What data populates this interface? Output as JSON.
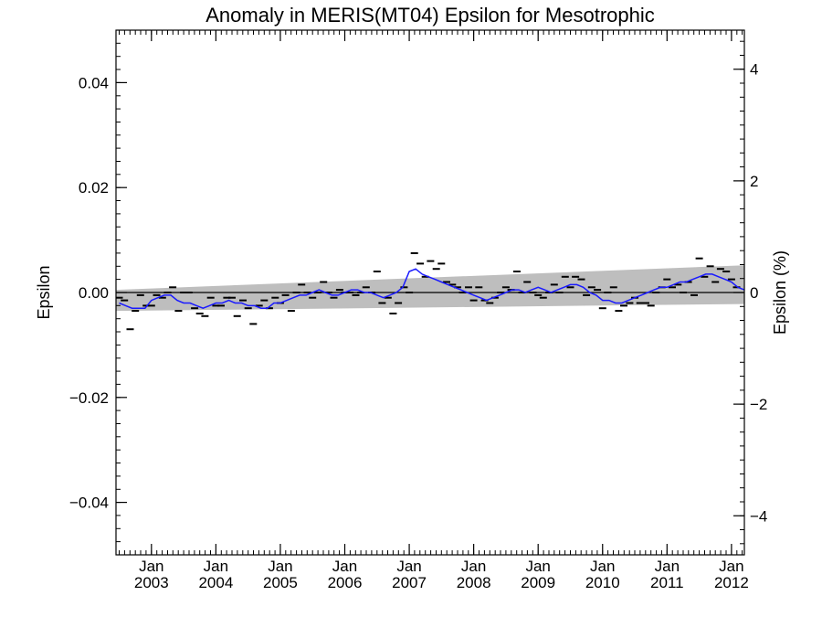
{
  "chart_data": {
    "type": "line",
    "title": "Anomaly in MERIS(MT04) Epsilon for Mesotrophic",
    "xlabel": "",
    "ylabel": "Epsilon",
    "y2label": "Epsilon (%)",
    "xlim": [
      2002.45,
      2012.2
    ],
    "ylim": [
      -0.05,
      0.05
    ],
    "y2lim": [
      -4.7,
      4.7
    ],
    "yticks": [
      {
        "value": -0.04,
        "label": "−0.04"
      },
      {
        "value": -0.02,
        "label": "−0.02"
      },
      {
        "value": 0.0,
        "label": "0.00"
      },
      {
        "value": 0.02,
        "label": "0.02"
      },
      {
        "value": 0.04,
        "label": "0.04"
      }
    ],
    "y2ticks": [
      {
        "value": -4,
        "label": "−4"
      },
      {
        "value": -2,
        "label": "−2"
      },
      {
        "value": 0,
        "label": "0"
      },
      {
        "value": 2,
        "label": "2"
      },
      {
        "value": 4,
        "label": "4"
      }
    ],
    "xticks": [
      {
        "value": 2003.0,
        "month": "Jan",
        "year": "2003"
      },
      {
        "value": 2004.0,
        "month": "Jan",
        "year": "2004"
      },
      {
        "value": 2005.0,
        "month": "Jan",
        "year": "2005"
      },
      {
        "value": 2006.0,
        "month": "Jan",
        "year": "2006"
      },
      {
        "value": 2007.0,
        "month": "Jan",
        "year": "2007"
      },
      {
        "value": 2008.0,
        "month": "Jan",
        "year": "2008"
      },
      {
        "value": 2009.0,
        "month": "Jan",
        "year": "2009"
      },
      {
        "value": 2010.0,
        "month": "Jan",
        "year": "2010"
      },
      {
        "value": 2011.0,
        "month": "Jan",
        "year": "2011"
      },
      {
        "value": 2012.0,
        "month": "Jan",
        "year": "2012"
      }
    ],
    "grid": false,
    "colors": {
      "smoothed_line": "#1a1aff",
      "confidence_band": "#bebebe",
      "points": "#000000",
      "zero_line": "#000000"
    },
    "confidence_band": {
      "x": [
        2002.45,
        2012.2
      ],
      "upper": [
        0.0005,
        0.0052
      ],
      "lower": [
        -0.0035,
        -0.0022
      ]
    },
    "series": [
      {
        "type": "points",
        "x": [
          2002.5,
          2002.58,
          2002.67,
          2002.75,
          2002.83,
          2002.92,
          2003.0,
          2003.08,
          2003.17,
          2003.25,
          2003.33,
          2003.42,
          2003.5,
          2003.58,
          2003.67,
          2003.75,
          2003.83,
          2003.92,
          2004.0,
          2004.08,
          2004.17,
          2004.25,
          2004.33,
          2004.42,
          2004.5,
          2004.58,
          2004.67,
          2004.75,
          2004.83,
          2004.92,
          2005.0,
          2005.08,
          2005.17,
          2005.25,
          2005.33,
          2005.42,
          2005.5,
          2005.58,
          2005.67,
          2005.75,
          2005.83,
          2005.92,
          2006.0,
          2006.08,
          2006.17,
          2006.25,
          2006.33,
          2006.42,
          2006.5,
          2006.58,
          2006.67,
          2006.75,
          2006.83,
          2006.92,
          2007.0,
          2007.08,
          2007.17,
          2007.25,
          2007.33,
          2007.42,
          2007.5,
          2007.58,
          2007.67,
          2007.75,
          2007.83,
          2007.92,
          2008.0,
          2008.08,
          2008.17,
          2008.25,
          2008.33,
          2008.42,
          2008.5,
          2008.58,
          2008.67,
          2008.75,
          2008.83,
          2008.92,
          2009.0,
          2009.08,
          2009.17,
          2009.25,
          2009.33,
          2009.42,
          2009.5,
          2009.58,
          2009.67,
          2009.75,
          2009.83,
          2009.92,
          2010.0,
          2010.08,
          2010.17,
          2010.25,
          2010.33,
          2010.42,
          2010.5,
          2010.58,
          2010.67,
          2010.75,
          2010.83,
          2010.92,
          2011.0,
          2011.08,
          2011.17,
          2011.25,
          2011.33,
          2011.42,
          2011.5,
          2011.58,
          2011.67,
          2011.75,
          2011.83,
          2011.92,
          2012.0,
          2012.08
        ],
        "y": [
          -0.001,
          -0.0015,
          -0.007,
          -0.0035,
          -0.0005,
          -0.0025,
          -0.0025,
          -0.0005,
          -0.001,
          0.0,
          0.001,
          -0.0035,
          0.0,
          0.0,
          -0.003,
          -0.004,
          -0.0045,
          -0.001,
          -0.0025,
          -0.0025,
          -0.001,
          -0.001,
          -0.0045,
          -0.0015,
          -0.003,
          -0.006,
          -0.0025,
          -0.0015,
          -0.003,
          -0.001,
          -0.002,
          -0.0005,
          -0.0035,
          0.0,
          0.0015,
          0.0,
          -0.001,
          0.0,
          0.002,
          0.0,
          -0.001,
          0.0005,
          0.0,
          0.0,
          -0.0005,
          0.0,
          0.001,
          0.0,
          0.004,
          -0.002,
          -0.001,
          -0.004,
          -0.002,
          0.001,
          0.0,
          0.0075,
          0.0055,
          0.003,
          0.006,
          0.0045,
          0.0055,
          0.002,
          0.0015,
          0.001,
          0.0,
          0.001,
          -0.0015,
          0.001,
          -0.0015,
          -0.002,
          -0.001,
          0.0,
          0.001,
          0.0005,
          0.004,
          0.0,
          0.002,
          0.0,
          -0.0005,
          -0.001,
          0.0,
          0.0015,
          0.0,
          0.003,
          0.001,
          0.003,
          0.0025,
          -0.0005,
          0.001,
          0.0005,
          -0.003,
          0.0,
          0.001,
          -0.0035,
          -0.0025,
          -0.002,
          -0.001,
          -0.002,
          -0.002,
          -0.0025,
          0.0,
          0.001,
          0.0025,
          0.001,
          0.0015,
          0.0,
          0.002,
          -0.0005,
          0.0065,
          0.003,
          0.005,
          0.002,
          0.0045,
          0.004,
          0.0025,
          0.001
        ]
      },
      {
        "type": "line",
        "x": [
          2002.5,
          2002.6,
          2002.7,
          2002.8,
          2002.9,
          2003.0,
          2003.1,
          2003.2,
          2003.3,
          2003.4,
          2003.5,
          2003.6,
          2003.7,
          2003.8,
          2003.9,
          2004.0,
          2004.1,
          2004.2,
          2004.3,
          2004.4,
          2004.5,
          2004.6,
          2004.7,
          2004.8,
          2004.9,
          2005.0,
          2005.1,
          2005.2,
          2005.3,
          2005.4,
          2005.5,
          2005.6,
          2005.7,
          2005.8,
          2005.9,
          2006.0,
          2006.1,
          2006.2,
          2006.3,
          2006.4,
          2006.5,
          2006.6,
          2006.7,
          2006.8,
          2006.9,
          2007.0,
          2007.1,
          2007.2,
          2007.3,
          2007.4,
          2007.5,
          2007.6,
          2007.7,
          2007.8,
          2007.9,
          2008.0,
          2008.1,
          2008.2,
          2008.3,
          2008.4,
          2008.5,
          2008.6,
          2008.7,
          2008.8,
          2008.9,
          2009.0,
          2009.1,
          2009.2,
          2009.3,
          2009.4,
          2009.5,
          2009.6,
          2009.7,
          2009.8,
          2009.9,
          2010.0,
          2010.1,
          2010.2,
          2010.3,
          2010.4,
          2010.5,
          2010.6,
          2010.7,
          2010.8,
          2010.9,
          2011.0,
          2011.1,
          2011.2,
          2011.3,
          2011.4,
          2011.5,
          2011.6,
          2011.7,
          2011.8,
          2011.9,
          2012.0,
          2012.1,
          2012.2
        ],
        "y": [
          -0.002,
          -0.0025,
          -0.003,
          -0.003,
          -0.003,
          -0.0015,
          -0.001,
          -0.0005,
          -0.0005,
          -0.0015,
          -0.002,
          -0.002,
          -0.0025,
          -0.003,
          -0.0025,
          -0.002,
          -0.002,
          -0.0015,
          -0.002,
          -0.002,
          -0.0025,
          -0.0025,
          -0.003,
          -0.003,
          -0.002,
          -0.002,
          -0.0015,
          -0.001,
          -0.0005,
          -0.0005,
          0.0,
          0.0005,
          0.0,
          -0.0005,
          -0.0005,
          0.0,
          0.0005,
          0.0005,
          0.0,
          0.0,
          -0.0005,
          -0.001,
          -0.0005,
          0.0,
          0.001,
          0.004,
          0.0045,
          0.0035,
          0.003,
          0.0025,
          0.002,
          0.0015,
          0.001,
          0.0005,
          0.0,
          -0.0005,
          -0.001,
          -0.0015,
          -0.001,
          -0.0005,
          0.0,
          0.0005,
          0.0005,
          0.0,
          0.0005,
          0.001,
          0.0005,
          0.0,
          0.0005,
          0.001,
          0.0015,
          0.0015,
          0.001,
          0.0,
          -0.0005,
          -0.0015,
          -0.0015,
          -0.002,
          -0.002,
          -0.0015,
          -0.001,
          -0.0005,
          0.0,
          0.0005,
          0.001,
          0.001,
          0.0015,
          0.002,
          0.002,
          0.0025,
          0.003,
          0.0035,
          0.0035,
          0.003,
          0.0025,
          0.002,
          0.001,
          0.0005
        ]
      }
    ]
  }
}
